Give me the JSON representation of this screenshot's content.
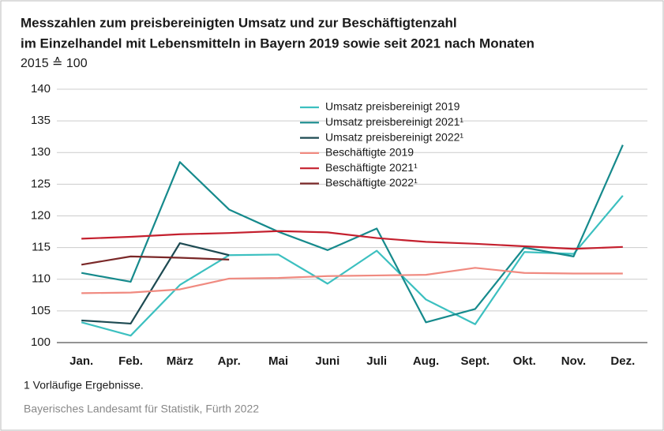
{
  "chart_data": {
    "type": "line",
    "title": "Messzahlen zum preisbereinigten Umsatz und zur Beschäftigtenzahl",
    "title_line2": "im Einzelhandel mit Lebensmitteln in Bayern 2019 sowie seit 2021 nach Monaten",
    "subtitle": "2015 ≙ 100",
    "categories": [
      "Jan.",
      "Feb.",
      "März",
      "Apr.",
      "Mai",
      "Juni",
      "Juli",
      "Aug.",
      "Sept.",
      "Okt.",
      "Nov.",
      "Dez."
    ],
    "series": [
      {
        "name": "Umsatz preisbereinigt 2019",
        "color": "#3cc0c0",
        "values": [
          103.2,
          101.1,
          109.1,
          113.8,
          113.9,
          109.3,
          114.5,
          106.8,
          102.9,
          114.3,
          114.0,
          123.2
        ]
      },
      {
        "name": "Umsatz preisbereinigt 2021¹",
        "color": "#168a8c",
        "values": [
          111.0,
          109.6,
          128.5,
          121.0,
          117.5,
          114.6,
          118.0,
          103.2,
          105.3,
          115.0,
          113.6,
          131.2
        ]
      },
      {
        "name": "Umsatz preisbereinigt 2022¹",
        "color": "#1d4a52",
        "values": [
          103.5,
          103.0,
          115.7,
          113.8,
          null,
          null,
          null,
          null,
          null,
          null,
          null,
          null
        ]
      },
      {
        "name": "Beschäftigte 2019",
        "color": "#f08a80",
        "values": [
          107.8,
          107.9,
          108.4,
          110.1,
          110.2,
          110.5,
          110.6,
          110.7,
          111.8,
          111.0,
          110.9,
          110.9
        ]
      },
      {
        "name": "Beschäftigte 2021¹",
        "color": "#c4202e",
        "values": [
          116.4,
          116.7,
          117.1,
          117.3,
          117.6,
          117.4,
          116.5,
          115.9,
          115.6,
          115.2,
          114.8,
          115.1
        ]
      },
      {
        "name": "Beschäftigte 2022¹",
        "color": "#7a2828",
        "values": [
          112.3,
          113.6,
          113.4,
          113.1,
          null,
          null,
          null,
          null,
          null,
          null,
          null,
          null
        ]
      }
    ],
    "ylim": [
      100,
      140
    ],
    "yticks": [
      100,
      105,
      110,
      115,
      120,
      125,
      130,
      135,
      140
    ],
    "grid": true,
    "footnote": "1  Vorläufige Ergebnisse.",
    "source": "Bayerisches Landesamt für Statistik, Fürth 2022"
  }
}
